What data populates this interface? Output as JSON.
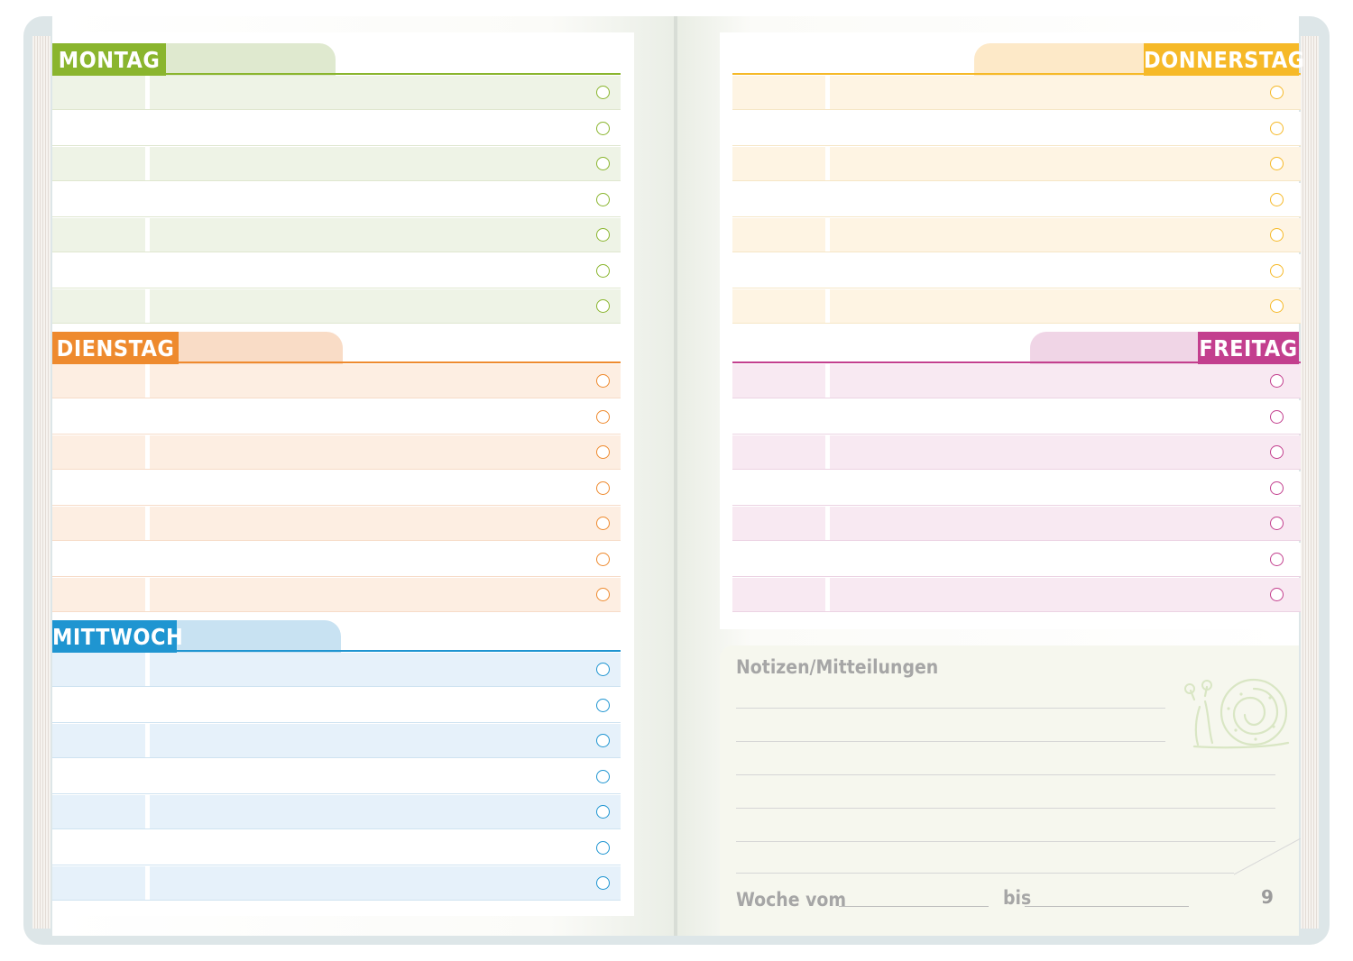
{
  "planner": {
    "days_left": [
      {
        "key": "montag",
        "label": "MONTAG",
        "color": "#8ab52e",
        "tab_tint": "#dfe9cf",
        "row_tint": "#eef3e6",
        "line_color": "#dfe7cf",
        "rows": 7
      },
      {
        "key": "dienstag",
        "label": "DIENSTAG",
        "color": "#ee8a2e",
        "tab_tint": "#f9dcc6",
        "row_tint": "#fdeee2",
        "line_color": "#f7dcc8",
        "rows": 7
      },
      {
        "key": "mittwoch",
        "label": "MITTWOCH",
        "color": "#1f95d1",
        "tab_tint": "#c8e2f2",
        "row_tint": "#e6f1fa",
        "line_color": "#cfe3f1",
        "rows": 7
      }
    ],
    "days_right": [
      {
        "key": "donnerstag",
        "label": "DONNERSTAG",
        "color": "#f6b928",
        "tab_tint": "#fde9c8",
        "row_tint": "#fef4e3",
        "line_color": "#f6e6c6",
        "rows": 7
      },
      {
        "key": "freitag",
        "label": "FREITAG",
        "color": "#c33f8e",
        "tab_tint": "#f0d5e6",
        "row_tint": "#f8e9f2",
        "line_color": "#ecd3e3",
        "rows": 7
      }
    ],
    "notes": {
      "title": "Notizen/Mitteilungen",
      "woche_label": "Woche vom",
      "bis_label": "bis"
    },
    "page_number": "9",
    "icons": [
      "snail-icon"
    ]
  }
}
